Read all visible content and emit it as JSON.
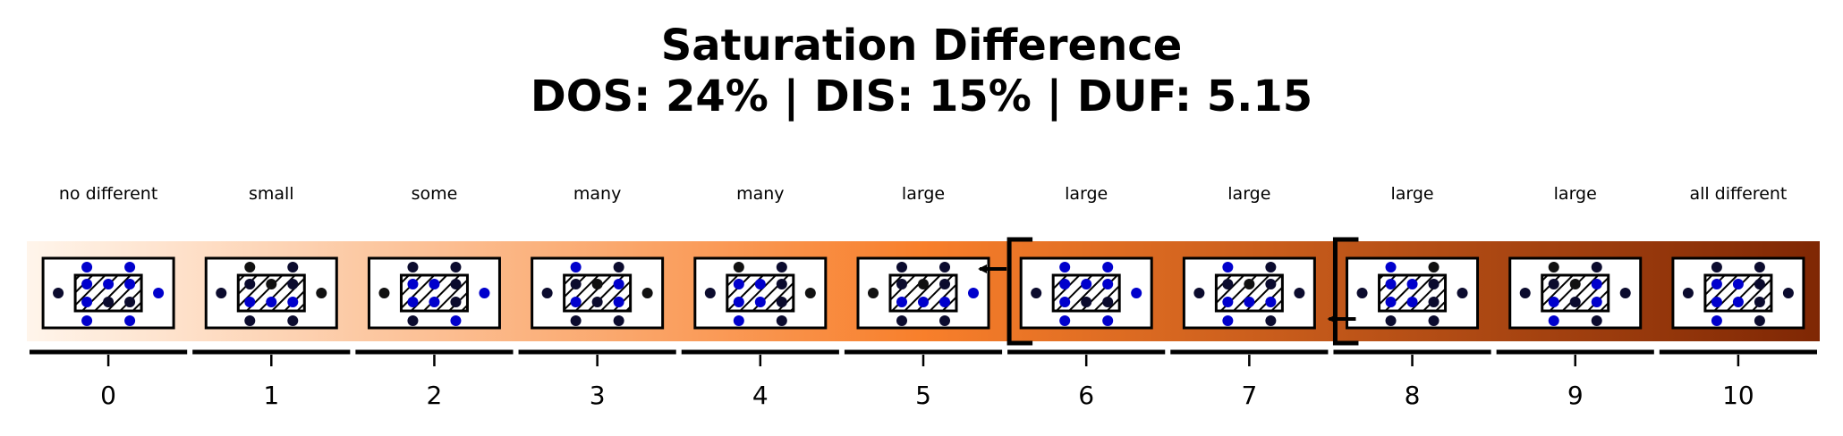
{
  "title": "Saturation Difference",
  "subtitle": "DOS: 24% | DIS: 15% | DUF: 5.15",
  "colors": {
    "gradient_start": "#fff5eb",
    "gradient_mid": "#f87f2b",
    "gradient_end": "#7f2704",
    "dot_blue": "#0000cc",
    "dot_navy": "#0b0b2e",
    "dot_black": "#111111"
  },
  "columns": [
    {
      "index": "0",
      "label": "no different"
    },
    {
      "index": "1",
      "label": "small"
    },
    {
      "index": "2",
      "label": "some"
    },
    {
      "index": "3",
      "label": "many"
    },
    {
      "index": "4",
      "label": "many"
    },
    {
      "index": "5",
      "label": "large"
    },
    {
      "index": "6",
      "label": "large"
    },
    {
      "index": "7",
      "label": "large"
    },
    {
      "index": "8",
      "label": "large"
    },
    {
      "index": "9",
      "label": "large"
    },
    {
      "index": "10",
      "label": "all different"
    }
  ],
  "brackets": [
    6,
    8
  ],
  "arrows": [
    {
      "from": 6,
      "to": 5
    },
    {
      "from": 8,
      "to": 7
    }
  ]
}
